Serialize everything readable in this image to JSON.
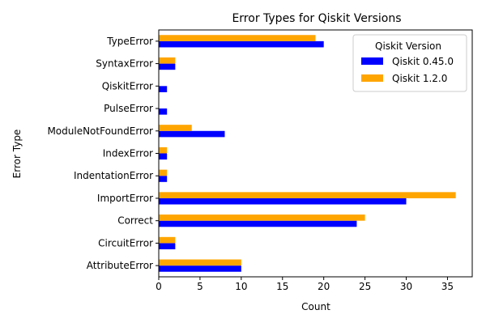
{
  "chart_data": {
    "type": "bar",
    "orientation": "horizontal",
    "title": "Error Types for Qiskit Versions",
    "xlabel": "Count",
    "ylabel": "Error Type",
    "xlim": [
      0,
      38
    ],
    "xticks": [
      0,
      5,
      10,
      15,
      20,
      25,
      30,
      35
    ],
    "grid": false,
    "legend": {
      "title": "Qiskit Version",
      "placement": "top-right"
    },
    "categories": [
      "TypeError",
      "SyntaxError",
      "QiskitError",
      "PulseError",
      "ModuleNotFoundError",
      "IndexError",
      "IndentationError",
      "ImportError",
      "Correct",
      "CircuitError",
      "AttributeError"
    ],
    "series": [
      {
        "name": "Qiskit 0.45.0",
        "color": "#0000ff",
        "values": [
          20,
          2,
          1,
          1,
          8,
          1,
          1,
          30,
          24,
          2,
          10
        ]
      },
      {
        "name": "Qiskit 1.2.0",
        "color": "#ffa500",
        "values": [
          19,
          2,
          0,
          0,
          4,
          1,
          1,
          36,
          25,
          2,
          10
        ]
      }
    ]
  }
}
